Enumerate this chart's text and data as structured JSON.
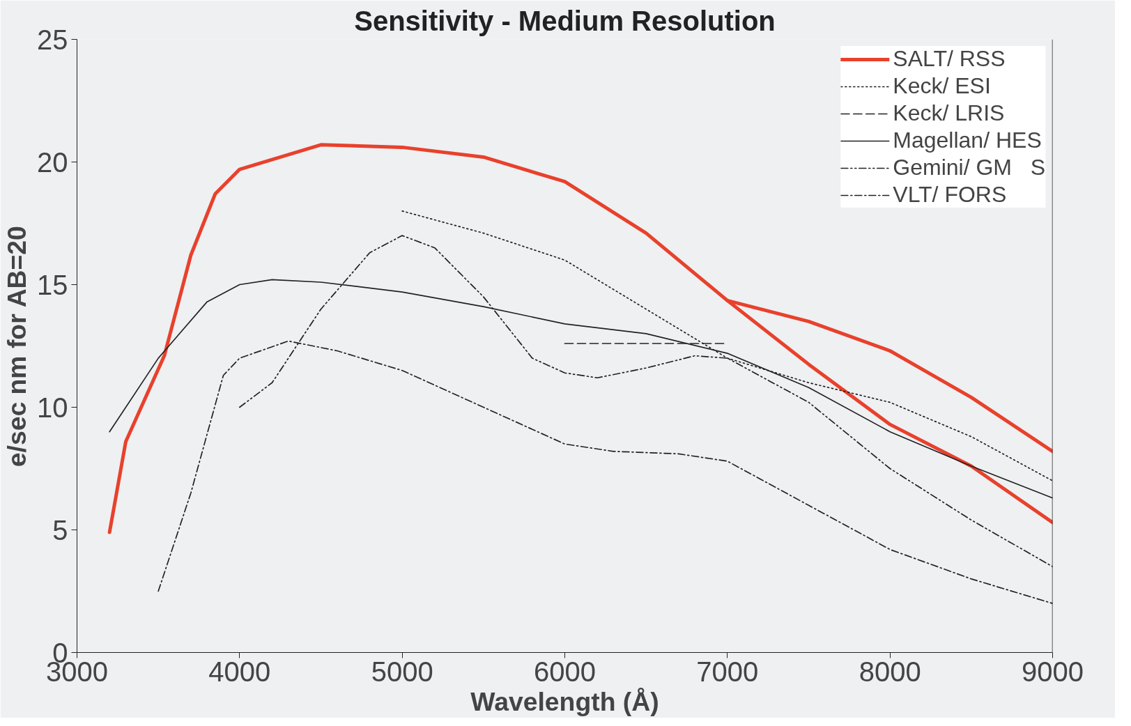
{
  "chart_data": {
    "type": "line",
    "title": "Sensitivity - Medium Resolution",
    "xlabel": "Wavelength (Å)",
    "ylabel": "e/sec nm for AB=20",
    "xlim": [
      3000,
      9000
    ],
    "ylim": [
      0,
      25
    ],
    "xticks": [
      3000,
      4000,
      5000,
      6000,
      7000,
      8000,
      9000
    ],
    "yticks": [
      0,
      5,
      10,
      15,
      20,
      25
    ],
    "grid": false,
    "legend": "top right",
    "marker": "none",
    "series": [
      {
        "name": "SALT/ RSS",
        "color": "#e8412c",
        "line_style": "solid",
        "x": [
          3200,
          3300,
          3537,
          3700,
          3850,
          4000,
          4500,
          5000,
          5500,
          6000,
          6500,
          7000,
          7500,
          8000,
          8500,
          9000
        ],
        "values": [
          4.9,
          8.6,
          12.1,
          16.2,
          18.7,
          19.7,
          20.7,
          20.6,
          20.2,
          19.2,
          17.1,
          14.35,
          11.75,
          9.3,
          7.6,
          5.3
        ]
      },
      {
        "color": "#e8412c",
        "line_style": "solid",
        "x": [
          7000,
          7500,
          8000,
          8500,
          9000
        ],
        "values": [
          14.35,
          13.5,
          12.3,
          10.4,
          8.2
        ]
      },
      {
        "name": "Keck/ ESI",
        "color": "#222222",
        "line_style": "dotted",
        "x": [
          5000,
          5500,
          6000,
          6500,
          7000,
          7500,
          8000,
          8500,
          9000
        ],
        "values": [
          18,
          17.1,
          16,
          14,
          12,
          11,
          10.2,
          8.8,
          7
        ]
      },
      {
        "name": "Keck/ LRIS",
        "color": "#222222",
        "line_style": "dashed",
        "x": [
          6000,
          7000
        ],
        "values": [
          12.6,
          12.6
        ]
      },
      {
        "name": "Magellan/ HES",
        "color": "#222222",
        "line_style": "solid",
        "x": [
          3200,
          3500,
          3800,
          4000,
          4200,
          4500,
          5000,
          5500,
          6000,
          6500,
          7000,
          7500,
          8000,
          8500,
          9000
        ],
        "values": [
          9,
          12,
          14.3,
          15,
          15.2,
          15.1,
          14.7,
          14.1,
          13.4,
          13,
          12.2,
          10.8,
          9,
          7.6,
          6.3
        ]
      },
      {
        "name": "Gemini/ GM   S",
        "color": "#222222",
        "line_style": "dashdotdot",
        "x": [
          4000,
          4200,
          4500,
          4800,
          5000,
          5200,
          5500,
          5800,
          6000,
          6200,
          6500,
          6800,
          7000,
          7500,
          8000,
          8500,
          9000
        ],
        "values": [
          10,
          11,
          14,
          16.3,
          17,
          16.5,
          14.5,
          12,
          11.4,
          11.2,
          11.6,
          12.1,
          12,
          10.2,
          7.5,
          5.4,
          3.5
        ]
      },
      {
        "name": "VLT/ FORS",
        "color": "#222222",
        "line_style": "dashdot",
        "x": [
          3500,
          3700,
          3900,
          4000,
          4300,
          4600,
          5000,
          5500,
          6000,
          6300,
          6700,
          7000,
          7500,
          8000,
          8500,
          9000
        ],
        "values": [
          2.5,
          6.5,
          11.3,
          12,
          12.7,
          12.3,
          11.5,
          10,
          8.5,
          8.2,
          8.1,
          7.8,
          6,
          4.2,
          3,
          2
        ]
      }
    ]
  }
}
